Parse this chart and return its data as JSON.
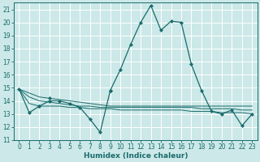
{
  "xlabel": "Humidex (Indice chaleur)",
  "xlim": [
    -0.5,
    23.5
  ],
  "ylim": [
    11,
    21.5
  ],
  "yticks": [
    11,
    12,
    13,
    14,
    15,
    16,
    17,
    18,
    19,
    20,
    21
  ],
  "xticks": [
    0,
    1,
    2,
    3,
    4,
    5,
    6,
    7,
    8,
    9,
    10,
    11,
    12,
    13,
    14,
    15,
    16,
    17,
    18,
    19,
    20,
    21,
    22,
    23
  ],
  "background_color": "#cce8e8",
  "grid_color": "#ffffff",
  "line_color": "#1a6b6b",
  "main_line": {
    "x": [
      0,
      1,
      2,
      3,
      4,
      5,
      6,
      7,
      8,
      9,
      10,
      11,
      12,
      13,
      14,
      15,
      16,
      17,
      18,
      19,
      20,
      21,
      22,
      23
    ],
    "y": [
      14.9,
      13.1,
      13.6,
      14.0,
      14.0,
      13.8,
      13.5,
      12.6,
      11.6,
      14.8,
      16.4,
      18.3,
      20.0,
      21.3,
      19.4,
      20.1,
      20.0,
      16.8,
      14.8,
      13.2,
      13.0,
      13.3,
      12.1,
      13.0
    ]
  },
  "trend_lines": [
    [
      14.9,
      14.6,
      14.3,
      14.2,
      14.1,
      14.0,
      13.9,
      13.8,
      13.7,
      13.6,
      13.6,
      13.6,
      13.6,
      13.6,
      13.6,
      13.6,
      13.6,
      13.6,
      13.6,
      13.6,
      13.6,
      13.6,
      13.6,
      13.6
    ],
    [
      14.9,
      14.3,
      14.0,
      13.9,
      13.8,
      13.7,
      13.6,
      13.6,
      13.5,
      13.5,
      13.5,
      13.5,
      13.5,
      13.5,
      13.5,
      13.5,
      13.5,
      13.5,
      13.4,
      13.4,
      13.4,
      13.4,
      13.3,
      13.3
    ],
    [
      14.9,
      13.8,
      13.6,
      13.6,
      13.6,
      13.5,
      13.5,
      13.4,
      13.4,
      13.4,
      13.3,
      13.3,
      13.3,
      13.3,
      13.3,
      13.3,
      13.3,
      13.2,
      13.2,
      13.2,
      13.1,
      13.1,
      13.1,
      13.0
    ]
  ],
  "marker_points": {
    "x": [
      2,
      3,
      9
    ],
    "y": [
      13.6,
      14.2,
      14.8
    ]
  }
}
